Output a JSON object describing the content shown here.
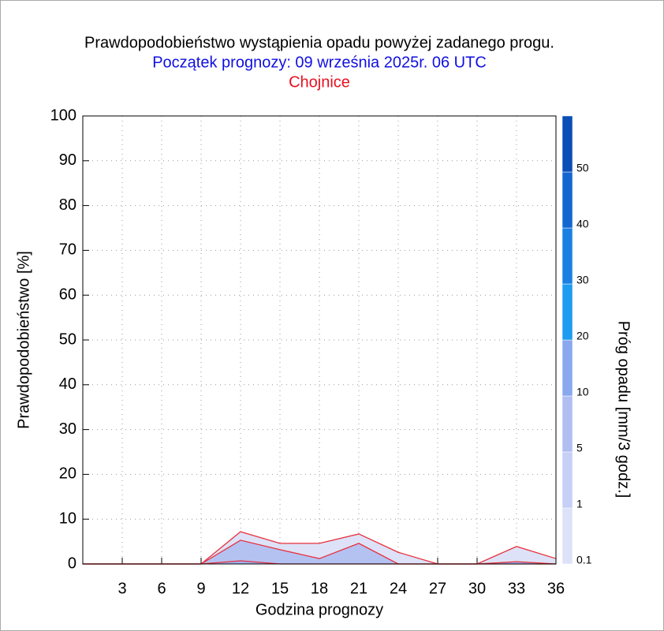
{
  "chart_data": {
    "type": "area",
    "title": "Prawdopodobieństwo wystąpienia opadu powyżej zadanego progu.",
    "subtitle": "Początek prognozy: 09 września 2025r. 06 UTC",
    "location": "Chojnice",
    "x_label": "Godzina prognozy",
    "y_label": "Prawdopodobieństwo [%]",
    "colorbar_label": "Próg opadu [mm/3 godz.]",
    "x": [
      0,
      3,
      6,
      9,
      12,
      15,
      18,
      21,
      24,
      27,
      30,
      33,
      36
    ],
    "series": [
      {
        "color": "#dde2f8",
        "values": [
          0,
          0,
          0,
          0,
          7.2,
          4.6,
          4.6,
          6.7,
          2.6,
          0,
          0,
          3.9,
          1.2
        ]
      },
      {
        "color": "#b4c2f2",
        "values": [
          0,
          0,
          0,
          0,
          5.3,
          3.2,
          1.2,
          4.6,
          0,
          0,
          0,
          0,
          0
        ]
      },
      {
        "color": "#9fb2f0",
        "values": [
          0,
          0,
          0,
          0,
          0.7,
          0,
          0,
          0,
          0,
          0,
          0,
          0.5,
          0
        ]
      }
    ],
    "line_color": "#e8303c",
    "xlim": [
      0,
      36
    ],
    "xticks": [
      3,
      6,
      9,
      12,
      15,
      18,
      21,
      24,
      27,
      30,
      33,
      36
    ],
    "ylim": [
      0,
      100
    ],
    "yticks": [
      0,
      10,
      20,
      30,
      40,
      50,
      60,
      70,
      80,
      90,
      100
    ],
    "grid": true,
    "colorbar": {
      "levels": [
        0.1,
        1,
        5,
        10,
        20,
        30,
        40,
        50
      ],
      "colors": [
        "#dde2f8",
        "#c6cff5",
        "#b0bef2",
        "#8aa8ee",
        "#1e9cf0",
        "#1a80e2",
        "#1266d0",
        "#0a4eb6"
      ]
    }
  }
}
